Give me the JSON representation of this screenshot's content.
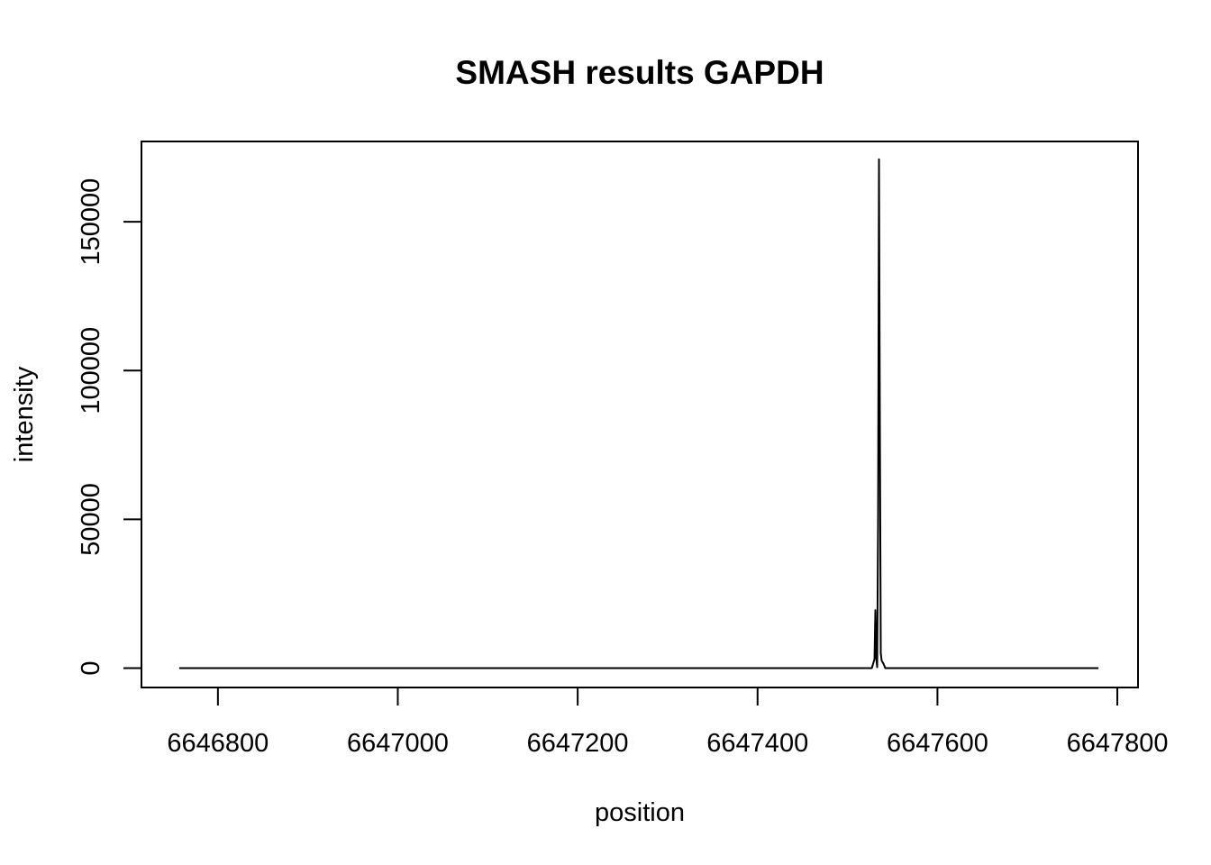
{
  "chart_data": {
    "type": "line",
    "title": "SMASH results GAPDH",
    "xlabel": "position",
    "ylabel": "intensity",
    "xlim": [
      6646715,
      6647823
    ],
    "ylim": [
      -6500,
      177000
    ],
    "x_ticks": [
      6646800,
      6647000,
      6647200,
      6647400,
      6647600,
      6647800
    ],
    "y_ticks": [
      0,
      50000,
      100000,
      150000
    ],
    "grid": false,
    "legend": "none",
    "line_color": "#000000",
    "series": [
      {
        "x": [
          6646757,
          6647527,
          6647530,
          6647531,
          6647532,
          6647533,
          6647534,
          6647535,
          6647536,
          6647537,
          6647538,
          6647540,
          6647542,
          6647779
        ],
        "y": [
          0,
          0,
          3000,
          19500,
          3500,
          300,
          50000,
          171000,
          80000,
          5000,
          2500,
          1500,
          0,
          0
        ]
      }
    ]
  }
}
